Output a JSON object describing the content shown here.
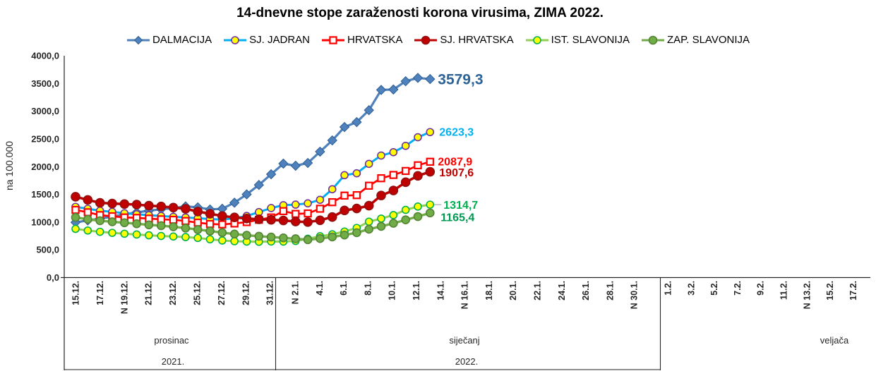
{
  "title": "14-dnevne stope zaraženosti korona virusima, ZIMA 2022.",
  "y_axis": {
    "title": "na 100.000",
    "tick_labels": [
      "0,0",
      "500,0",
      "1000,0",
      "1500,0",
      "2000,0",
      "2500,0",
      "3000,0",
      "3500,0",
      "4000,0"
    ],
    "min": 0,
    "max": 4000,
    "step": 500
  },
  "x_axis": {
    "tick_labels": [
      "15.12.",
      "17.12.",
      "N 19.12.",
      "21.12.",
      "23.12.",
      "25.12.",
      "27.12.",
      "29.12.",
      "31.12.",
      "N 2.1.",
      "4.1.",
      "6.1.",
      "8.1.",
      "10.1.",
      "12.1.",
      "14.1.",
      "N 16.1.",
      "18.1.",
      "20.1.",
      "22.1.",
      "24.1.",
      "26.1.",
      "28.1.",
      "N 30.1.",
      "1.2.",
      "3.2.",
      "5.2.",
      "7.2.",
      "9.2.",
      "11.2.",
      "N 13.2.",
      "15.2.",
      "17.2."
    ],
    "groups": [
      {
        "month": "prosinac",
        "year": "2021.",
        "ticks": 9
      },
      {
        "month": "siječanj",
        "year": "2022.",
        "ticks": 15
      },
      {
        "month": "veljača",
        "year": "",
        "ticks": 9
      }
    ]
  },
  "chart_data": {
    "type": "line",
    "title": "14-dnevne stope zaraženosti korona virusima, ZIMA 2022.",
    "ylabel": "na 100.000",
    "ylim": [
      0,
      4000
    ],
    "grid": false,
    "legend_position": "top",
    "points_cadence": "daily",
    "first_point_date": "15.12.",
    "last_point_date": "13.1.",
    "series": [
      {
        "name": "DALMACIJA",
        "color": "#4F81BD",
        "line_width": 3.2,
        "marker": "diamond",
        "marker_fill": "#4F81BD",
        "marker_stroke": "#2E5E91",
        "marker_size": 6.5,
        "end_label": "3579,3",
        "end_label_color": "#2E6397",
        "end_label_size": 21,
        "values": [
          995,
          1030,
          1062,
          1100,
          1140,
          1175,
          1205,
          1232,
          1253,
          1283,
          1266,
          1228,
          1240,
          1350,
          1500,
          1670,
          1863,
          2054,
          2016,
          2066,
          2270,
          2473,
          2714,
          2803,
          3018,
          3383,
          3391,
          3540,
          3600,
          3579.3
        ]
      },
      {
        "name": "SJ. JADRAN",
        "color": "#00B0F0",
        "line_width": 3,
        "marker": "circle",
        "marker_fill": "#FFFF00",
        "marker_stroke": "#7030A0",
        "marker_size": 5,
        "end_label": "2623,3",
        "end_label_color": "#00B0F0",
        "end_label_size": 16,
        "values": [
          1275,
          1240,
          1205,
          1185,
          1160,
          1140,
          1125,
          1110,
          1095,
          1084,
          1070,
          1055,
          1045,
          1070,
          1110,
          1180,
          1253,
          1305,
          1315,
          1338,
          1402,
          1592,
          1846,
          1880,
          2050,
          2200,
          2260,
          2375,
          2530,
          2623.3
        ]
      },
      {
        "name": "HRVATSKA",
        "color": "#FF0000",
        "line_width": 2.7,
        "marker": "square",
        "marker_fill": "#FFFFFF",
        "marker_stroke": "#FF0000",
        "marker_size": 4.6,
        "end_label": "2087,9",
        "end_label_color": "#FF0000",
        "end_label_size": 16,
        "values": [
          1219,
          1177,
          1126,
          1105,
          1084,
          1076,
          1063,
          1050,
          1041,
          1020,
          990,
          965,
          958,
          975,
          1000,
          1041,
          1084,
          1198,
          1148,
          1156,
          1241,
          1359,
          1478,
          1486,
          1656,
          1791,
          1850,
          1922,
          2024,
          2087.9
        ]
      },
      {
        "name": "SJ. HRVATSKA",
        "color": "#C00000",
        "line_width": 3.6,
        "marker": "circle",
        "marker_fill": "#C00000",
        "marker_stroke": "#8F1010",
        "marker_size": 6,
        "end_label": "1907,6",
        "end_label_color": "#C00000",
        "end_label_size": 16,
        "values": [
          1457,
          1400,
          1348,
          1335,
          1325,
          1315,
          1296,
          1283,
          1262,
          1240,
          1190,
          1150,
          1110,
          1085,
          1065,
          1050,
          1040,
          1030,
          1010,
          1000,
          1033,
          1092,
          1211,
          1245,
          1296,
          1480,
          1570,
          1719,
          1834,
          1907.6
        ]
      },
      {
        "name": "IST. SLAVONIJA",
        "color": "#92D050",
        "line_width": 3,
        "marker": "circle",
        "marker_fill": "#FFFF00",
        "marker_stroke": "#00B050",
        "marker_size": 5,
        "end_label": "1314,7",
        "end_label_color": "#00B050",
        "end_label_size": 16,
        "leader": true,
        "values": [
          878,
          848,
          825,
          806,
          790,
          776,
          762,
          750,
          740,
          730,
          714,
          690,
          668,
          655,
          648,
          645,
          650,
          648,
          660,
          700,
          745,
          780,
          830,
          895,
          1008,
          1063,
          1126,
          1220,
          1280,
          1314.7
        ]
      },
      {
        "name": "ZAP. SLAVONIJA",
        "color": "#70AD47",
        "line_width": 3.4,
        "marker": "circle",
        "marker_fill": "#70AD47",
        "marker_stroke": "#548235",
        "marker_size": 5.5,
        "end_label": "1165,4",
        "end_label_color": "#009951",
        "end_label_size": 16,
        "values": [
          1085,
          1050,
          1025,
          1005,
          988,
          970,
          950,
          935,
          915,
          892,
          865,
          838,
          810,
          785,
          762,
          745,
          730,
          715,
          700,
          682,
          703,
          732,
          767,
          809,
          872,
          923,
          978,
          1040,
          1100,
          1165.4
        ]
      }
    ]
  }
}
